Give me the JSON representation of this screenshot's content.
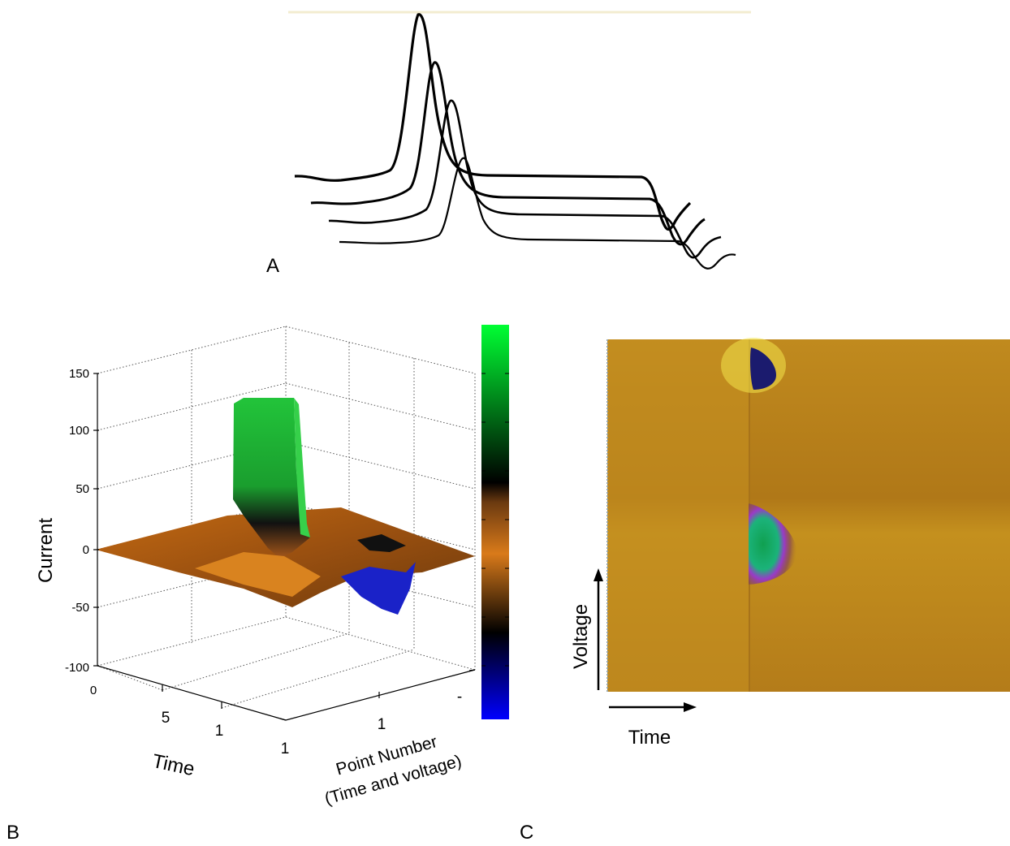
{
  "panel_a": {
    "letter": "A"
  },
  "panel_b": {
    "letter": "B",
    "z_label": "Current",
    "z_ticks": [
      "150",
      "100",
      "50",
      "0",
      "-50",
      "-100"
    ],
    "time_label": "Time",
    "time_ticks": [
      "0",
      "5",
      "1"
    ],
    "point_label_line1": "Point Number",
    "point_label_line2": "(Time and voltage)",
    "point_ticks": [
      "1",
      "1",
      "-"
    ],
    "colorbar_colors": [
      "#0000ff",
      "#000000",
      "#ff8c1a",
      "#000000",
      "#00ff33"
    ]
  },
  "panel_c": {
    "letter": "C",
    "y_label": "Voltage",
    "x_label": "Time",
    "background_color": "#b57f1a"
  }
}
